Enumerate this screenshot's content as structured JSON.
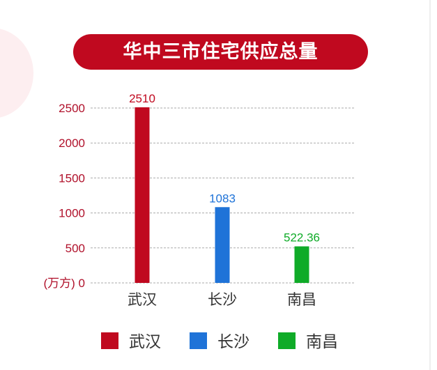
{
  "chart_data": {
    "type": "bar",
    "title": "华中三市住宅供应总量",
    "unit_label": "(万方)",
    "categories": [
      "武汉",
      "长沙",
      "南昌"
    ],
    "values": [
      2510,
      1083,
      522.36
    ],
    "data_labels": [
      "2510",
      "1083",
      "522.36"
    ],
    "colors": [
      "#c0091f",
      "#1f73d8",
      "#0fab28"
    ],
    "ylim": [
      0,
      2500
    ],
    "yticks": [
      0,
      500,
      1000,
      1500,
      2000,
      2500
    ],
    "grid": true,
    "legend": {
      "position": "bottom",
      "entries": [
        "武汉",
        "长沙",
        "南昌"
      ]
    }
  }
}
